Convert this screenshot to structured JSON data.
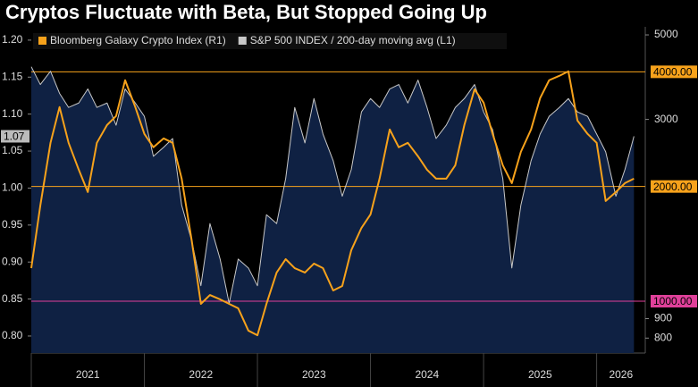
{
  "chart_data": {
    "type": "line",
    "title": "Cryptos Fluctuate with Beta, But Stopped Going Up",
    "x": [
      2021.0,
      2021.08,
      2021.17,
      2021.25,
      2021.33,
      2021.42,
      2021.5,
      2021.58,
      2021.67,
      2021.75,
      2021.83,
      2021.92,
      2022.0,
      2022.08,
      2022.17,
      2022.25,
      2022.33,
      2022.42,
      2022.5,
      2022.58,
      2022.67,
      2022.75,
      2022.83,
      2022.92,
      2023.0,
      2023.08,
      2023.17,
      2023.25,
      2023.33,
      2023.42,
      2023.5,
      2023.58,
      2023.67,
      2023.75,
      2023.83,
      2023.92,
      2024.0,
      2024.08,
      2024.17,
      2024.25,
      2024.33,
      2024.42,
      2024.5,
      2024.58,
      2024.67,
      2024.75,
      2024.83,
      2024.92,
      2025.0,
      2025.08,
      2025.17,
      2025.25,
      2025.33,
      2025.42,
      2025.5,
      2025.58,
      2025.67,
      2025.75,
      2025.83,
      2025.92,
      2026.0,
      2026.08,
      2026.17,
      2026.25,
      2026.33
    ],
    "series": [
      {
        "name": "Bloomberg Galaxy Crypto Index (R1)",
        "color": "#f7a21b",
        "axis": "y2",
        "values": [
          1221,
          1783,
          2604,
          3232,
          2604,
          2213,
          1934,
          2604,
          2900,
          3062,
          3802,
          3232,
          2748,
          2535,
          2675,
          2604,
          2097,
          1436,
          984,
          1038,
          1011,
          984,
          958,
          837,
          814,
          984,
          1189,
          1289,
          1221,
          1189,
          1255,
          1221,
          1067,
          1096,
          1361,
          1557,
          1689,
          2097,
          2823,
          2535,
          2604,
          2401,
          2213,
          2097,
          2097,
          2274,
          2900,
          3599,
          3320,
          2748,
          2274,
          2041,
          2466,
          2823,
          3411,
          3802,
          3904,
          4011,
          2980,
          2748,
          2604,
          1832,
          1934,
          2041,
          2097
        ]
      },
      {
        "name": "S&P 500 INDEX / 200-day moving avg (L1)",
        "color": "#c8c8c8",
        "area_color": "#0f2143",
        "area": true,
        "last_value_label": "1.07",
        "values": [
          1.164,
          1.14,
          1.158,
          1.128,
          1.109,
          1.115,
          1.134,
          1.109,
          1.115,
          1.085,
          1.134,
          1.115,
          1.097,
          1.043,
          1.055,
          1.067,
          0.977,
          0.928,
          0.868,
          0.952,
          0.904,
          0.844,
          0.904,
          0.892,
          0.868,
          0.964,
          0.952,
          1.013,
          1.109,
          1.061,
          1.121,
          1.073,
          1.037,
          0.989,
          1.025,
          1.103,
          1.121,
          1.109,
          1.134,
          1.14,
          1.115,
          1.146,
          1.109,
          1.067,
          1.085,
          1.109,
          1.121,
          1.14,
          1.103,
          1.079,
          1.013,
          0.892,
          0.977,
          1.037,
          1.073,
          1.097,
          1.109,
          1.121,
          1.103,
          1.097,
          1.073,
          1.049,
          0.989,
          1.025,
          1.07
        ]
      }
    ],
    "xlim": [
      2021.0,
      2026.43
    ],
    "xticks": [
      2021,
      2022,
      2023,
      2024,
      2025,
      2026
    ],
    "ylim": [
      0.777,
      1.218
    ],
    "yticks": [
      {
        "value": 0.8,
        "label": "0.80"
      },
      {
        "value": 0.85,
        "label": "0.85"
      },
      {
        "value": 0.9,
        "label": "0.90"
      },
      {
        "value": 0.95,
        "label": "0.95"
      },
      {
        "value": 1.0,
        "label": "1.00"
      },
      {
        "value": 1.05,
        "label": "1.05"
      },
      {
        "value": 1.1,
        "label": "1.10"
      },
      {
        "value": 1.15,
        "label": "1.15"
      },
      {
        "value": 1.2,
        "label": "1.20"
      }
    ],
    "y2lim": [
      731,
      5250
    ],
    "y2log": true,
    "y2ticks": [
      800,
      900,
      3000,
      5000
    ],
    "hlines": [
      {
        "value": 4000,
        "label": "4000.00",
        "color": "#f7a21b",
        "axis": "y2"
      },
      {
        "value": 2000,
        "label": "2000.00",
        "color": "#f7a21b",
        "axis": "y2"
      },
      {
        "value": 1000,
        "label": "1000.00",
        "color": "#e0409a",
        "axis": "y2"
      }
    ],
    "legend": "top-left"
  }
}
